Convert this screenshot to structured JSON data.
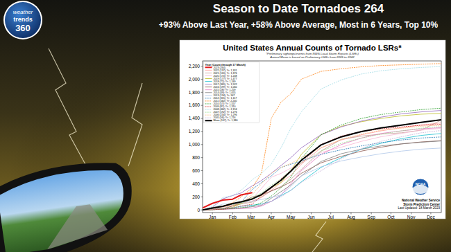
{
  "header": {
    "title": "Season to Date Tornadoes 264",
    "subtitle": "+93% Above Last Year, +58% Above Average, Most in 6 Years, Top 10%"
  },
  "logo": {
    "lines": [
      "weather",
      "trends",
      "360"
    ]
  },
  "chart_data": {
    "type": "line",
    "title": "United States Annual Counts of Tornado LSRs*",
    "notes": [
      "*Preliminary sightings/events from NWS Local Storm Reports (LSRs)",
      "Annual Mean is based on Preliminary LSRs from 2005 to 2022"
    ],
    "legend_title": "Year (Count through 17 March)",
    "legend": "upper left",
    "grid": false,
    "x": [
      0,
      15,
      31,
      46,
      59,
      76,
      90,
      105,
      120,
      135,
      151,
      181,
      212,
      243,
      273,
      304,
      334,
      365
    ],
    "xlim": [
      0,
      365
    ],
    "xticks": [
      {
        "value": 15,
        "label": "Jan"
      },
      {
        "value": 46,
        "label": "Feb"
      },
      {
        "value": 74,
        "label": "Mar"
      },
      {
        "value": 105,
        "label": "Apr"
      },
      {
        "value": 135,
        "label": "May"
      },
      {
        "value": 166,
        "label": "Jun"
      },
      {
        "value": 196,
        "label": "Jul"
      },
      {
        "value": 227,
        "label": "Aug"
      },
      {
        "value": 258,
        "label": "Sep"
      },
      {
        "value": 288,
        "label": "Oct"
      },
      {
        "value": 319,
        "label": "Nov"
      },
      {
        "value": 349,
        "label": "Dec"
      }
    ],
    "ylim": [
      -40,
      2280
    ],
    "yticks": [
      0,
      200,
      400,
      600,
      800,
      {
        "value": 1000,
        "label": "1,000"
      },
      {
        "value": 1200,
        "label": "1,200"
      },
      {
        "value": 1400,
        "label": "1,400"
      },
      {
        "value": 1600,
        "label": "1,600"
      },
      {
        "value": 1800,
        "label": "1,800"
      },
      {
        "value": 2000,
        "label": "2,000"
      },
      {
        "value": 2200,
        "label": "2,200"
      }
    ],
    "series": [
      {
        "name": "2023 (264)",
        "color": "#e41a1c",
        "line_style": "thick",
        "values": [
          30,
          100,
          150,
          165,
          230,
          264,
          null,
          null,
          null,
          null,
          null,
          null,
          null,
          null,
          null,
          null,
          null,
          null
        ]
      },
      {
        "name": "2022 (137); Yr: 1,331",
        "color": "#ff9896",
        "line_style": "solid",
        "values": [
          0,
          10,
          50,
          70,
          100,
          137,
          190,
          300,
          420,
          530,
          700,
          950,
          1070,
          1150,
          1210,
          1260,
          1300,
          1331
        ]
      },
      {
        "name": "2021 (120); Yr: 1,376",
        "color": "#c49c94",
        "line_style": "solid",
        "values": [
          0,
          5,
          15,
          60,
          90,
          120,
          200,
          290,
          360,
          470,
          620,
          900,
          1080,
          1130,
          1160,
          1180,
          1220,
          1376
        ]
      },
      {
        "name": "2020 (170); Yr: 1,248",
        "color": "#f7b6d2",
        "line_style": "solid",
        "values": [
          0,
          40,
          60,
          80,
          110,
          170,
          330,
          500,
          560,
          640,
          720,
          880,
          960,
          1050,
          1120,
          1170,
          1220,
          1248
        ]
      },
      {
        "name": "2019 (177); Yr: 1,477",
        "color": "#bcbd22",
        "line_style": "solid",
        "values": [
          0,
          5,
          10,
          40,
          100,
          177,
          220,
          340,
          420,
          600,
          850,
          1150,
          1280,
          1350,
          1400,
          1440,
          1465,
          1477
        ]
      },
      {
        "name": "2018 (72); Yr: 1,169",
        "color": "#17becf",
        "line_style": "solid",
        "values": [
          0,
          5,
          15,
          30,
          55,
          72,
          90,
          130,
          220,
          300,
          430,
          650,
          800,
          930,
          1020,
          1090,
          1140,
          1169
        ]
      },
      {
        "name": "2017 (369); Yr: 1,522",
        "color": "#9467bd",
        "line_style": "solid",
        "values": [
          0,
          40,
          170,
          220,
          260,
          369,
          450,
          560,
          680,
          800,
          950,
          1150,
          1270,
          1360,
          1420,
          1470,
          1500,
          1522
        ]
      },
      {
        "name": "2016 (199); Yr: 1,060",
        "color": "#8c564b",
        "line_style": "solid",
        "values": [
          0,
          10,
          20,
          60,
          110,
          199,
          230,
          290,
          350,
          430,
          560,
          720,
          820,
          900,
          960,
          1010,
          1040,
          1060
        ]
      },
      {
        "name": "2015 (28); Yr: 1,259",
        "color": "#e377c2",
        "line_style": "solid",
        "values": [
          0,
          5,
          10,
          15,
          20,
          28,
          60,
          130,
          230,
          400,
          600,
          850,
          1000,
          1100,
          1170,
          1210,
          1240,
          1259
        ]
      },
      {
        "name": "2014 (49); Yr: 1,055",
        "color": "#7f7f7f",
        "line_style": "solid",
        "values": [
          0,
          5,
          10,
          20,
          30,
          49,
          70,
          180,
          280,
          380,
          520,
          740,
          860,
          930,
          980,
          1010,
          1035,
          1055
        ]
      },
      {
        "name": "2013 (134); Yr: 947",
        "color": "#aec7e8",
        "line_style": "solid",
        "values": [
          0,
          30,
          90,
          95,
          110,
          134,
          160,
          190,
          230,
          360,
          520,
          660,
          750,
          810,
          860,
          900,
          930,
          947
        ]
      },
      {
        "name": "2012 (315); Yr: 1,117",
        "color": "#1f77b4",
        "line_style": "dashed",
        "values": [
          0,
          20,
          60,
          90,
          120,
          315,
          420,
          520,
          650,
          700,
          750,
          850,
          920,
          980,
          1030,
          1070,
          1100,
          1117
        ]
      },
      {
        "name": "2011 (340); Yr: 2,240",
        "color": "#ff7f0e",
        "line_style": "dashed",
        "values": [
          0,
          5,
          60,
          110,
          200,
          340,
          560,
          1400,
          1650,
          1780,
          2000,
          2120,
          2160,
          2190,
          2210,
          2220,
          2230,
          2240
        ]
      },
      {
        "name": "2010 (57); Yr: 1,557",
        "color": "#2ca02c",
        "line_style": "dashed",
        "values": [
          0,
          5,
          15,
          25,
          35,
          57,
          110,
          210,
          340,
          500,
          780,
          1150,
          1300,
          1400,
          1460,
          1500,
          1535,
          1557
        ]
      },
      {
        "name": "2009 (87); Yr: 1,310",
        "color": "#d62728",
        "line_style": "dashed",
        "values": [
          0,
          5,
          10,
          30,
          60,
          87,
          220,
          330,
          480,
          600,
          720,
          1000,
          1130,
          1200,
          1240,
          1270,
          1295,
          1310
        ]
      },
      {
        "name": "2008 (462); Yr: 2,194",
        "color": "#9edae5",
        "line_style": "dashed",
        "values": [
          0,
          60,
          190,
          220,
          300,
          462,
          560,
          700,
          950,
          1250,
          1500,
          1850,
          1990,
          2080,
          2130,
          2160,
          2180,
          2194
        ]
      },
      {
        "name": "2007 (192); Yr: 1,276",
        "color": "#98df8a",
        "line_style": "dashed",
        "values": [
          0,
          40,
          60,
          80,
          100,
          192,
          260,
          380,
          470,
          620,
          720,
          900,
          1020,
          1100,
          1160,
          1210,
          1250,
          1276
        ]
      },
      {
        "name": "2006 (234); Yr: 1,296",
        "color": "#ffbb78",
        "line_style": "dashed",
        "values": [
          0,
          10,
          40,
          60,
          120,
          234,
          400,
          560,
          650,
          710,
          800,
          950,
          1080,
          1160,
          1220,
          1250,
          1280,
          1296
        ]
      },
      {
        "name": "2005 (56); Yr: 1,216",
        "color": "#c5b0d5",
        "line_style": "dashed",
        "values": [
          0,
          10,
          30,
          40,
          45,
          56,
          80,
          130,
          200,
          300,
          420,
          600,
          780,
          940,
          1050,
          1120,
          1180,
          1216
        ]
      },
      {
        "name": "Mean (167); Yr: 1,380",
        "color": "#000000",
        "line_style": "thick",
        "values": [
          0,
          28,
          55,
          97,
          124,
          167,
          235,
          345,
          455,
          593,
          759,
          994,
          1118,
          1200,
          1256,
          1297,
          1339,
          1380
        ]
      }
    ],
    "logo_text": "NOAA",
    "credit": [
      "National Weather Service",
      "Storm Prediction Center",
      "Last Updated: 18 March 2023"
    ]
  }
}
